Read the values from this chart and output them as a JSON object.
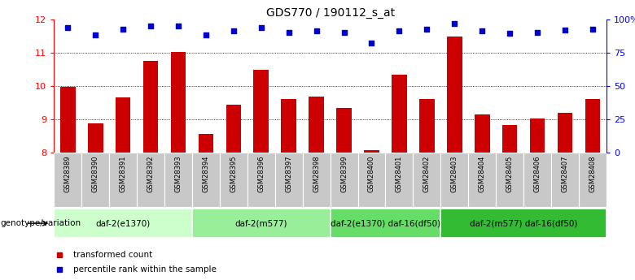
{
  "title": "GDS770 / 190112_s_at",
  "categories": [
    "GSM28389",
    "GSM28390",
    "GSM28391",
    "GSM28392",
    "GSM28393",
    "GSM28394",
    "GSM28395",
    "GSM28396",
    "GSM28397",
    "GSM28398",
    "GSM28399",
    "GSM28400",
    "GSM28401",
    "GSM28402",
    "GSM28403",
    "GSM28404",
    "GSM28405",
    "GSM28406",
    "GSM28407",
    "GSM28408"
  ],
  "bar_values": [
    9.98,
    8.88,
    9.65,
    10.75,
    11.02,
    8.55,
    9.45,
    10.5,
    9.62,
    9.68,
    9.35,
    8.08,
    10.35,
    9.62,
    11.5,
    9.15,
    8.82,
    9.02,
    9.2,
    9.6
  ],
  "dot_values": [
    11.75,
    11.55,
    11.72,
    11.82,
    11.82,
    11.55,
    11.65,
    11.75,
    11.62,
    11.65,
    11.62,
    11.3,
    11.65,
    11.72,
    11.88,
    11.65,
    11.58,
    11.62,
    11.68,
    11.72
  ],
  "ylim_left": [
    8,
    12
  ],
  "ylim_right": [
    0,
    100
  ],
  "yticks_left": [
    8,
    9,
    10,
    11,
    12
  ],
  "yticks_right": [
    0,
    25,
    50,
    75,
    100
  ],
  "ytick_labels_right": [
    "0",
    "25",
    "50",
    "75",
    "100%"
  ],
  "gridlines": [
    9,
    10,
    11
  ],
  "bar_color": "#cc0000",
  "dot_color": "#0000cc",
  "groups": [
    {
      "label": "daf-2(e1370)",
      "start": 0,
      "end": 5,
      "color": "#ccffcc"
    },
    {
      "label": "daf-2(m577)",
      "start": 5,
      "end": 10,
      "color": "#99ee99"
    },
    {
      "label": "daf-2(e1370) daf-16(df50)",
      "start": 10,
      "end": 14,
      "color": "#66dd66"
    },
    {
      "label": "daf-2(m577) daf-16(df50)",
      "start": 14,
      "end": 20,
      "color": "#33bb33"
    }
  ],
  "genotype_label": "genotype/variation",
  "legend_items": [
    {
      "label": "transformed count",
      "color": "#cc0000"
    },
    {
      "label": "percentile rank within the sample",
      "color": "#0000cc"
    }
  ],
  "cell_color": "#c8c8c8"
}
